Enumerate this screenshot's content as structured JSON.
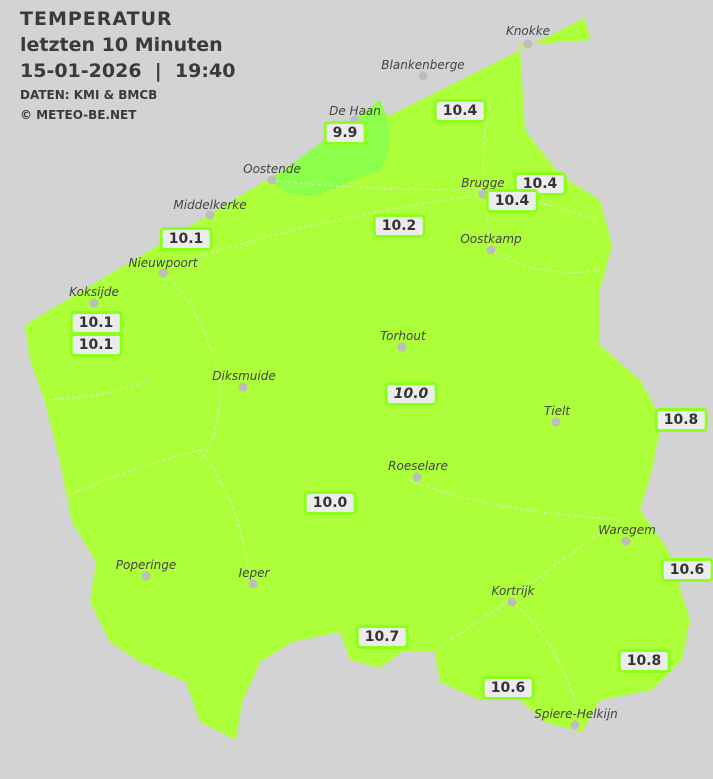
{
  "header": {
    "title": "TEMPERATUR",
    "subtitle": "letzten 10 Minuten",
    "datetime": "15-01-2026  |  19:40",
    "source": "DATEN: KMI & BMCB",
    "copyright": "© METEO-BE.NET"
  },
  "colors": {
    "background": "#d3d3d3",
    "region_fill": "#adff3a",
    "cold_zone_fill": "#8cff4a",
    "station_border": "#8cff1a"
  },
  "cities": [
    {
      "name": "Knokke"
    },
    {
      "name": "Blankenberge"
    },
    {
      "name": "De Haan"
    },
    {
      "name": "Oostende"
    },
    {
      "name": "Middelkerke"
    },
    {
      "name": "Brugge"
    },
    {
      "name": "Oostkamp"
    },
    {
      "name": "Nieuwpoort"
    },
    {
      "name": "Koksijde"
    },
    {
      "name": "Torhout"
    },
    {
      "name": "Diksmuide"
    },
    {
      "name": "Tielt"
    },
    {
      "name": "Roeselare"
    },
    {
      "name": "Waregem"
    },
    {
      "name": "Poperinge"
    },
    {
      "name": "Ieper"
    },
    {
      "name": "Kortrijk"
    },
    {
      "name": "Spiere-Helkijn"
    }
  ],
  "stations": [
    {
      "value": "10.4"
    },
    {
      "value": "9.9"
    },
    {
      "value": "10.4"
    },
    {
      "value": "10.4"
    },
    {
      "value": "10.2"
    },
    {
      "value": "10.1"
    },
    {
      "value": "10.1"
    },
    {
      "value": "10.1"
    },
    {
      "value": "10.0"
    },
    {
      "value": "10.8"
    },
    {
      "value": "10.0"
    },
    {
      "value": "10.6"
    },
    {
      "value": "10.7"
    },
    {
      "value": "10.8"
    },
    {
      "value": "10.6"
    }
  ]
}
